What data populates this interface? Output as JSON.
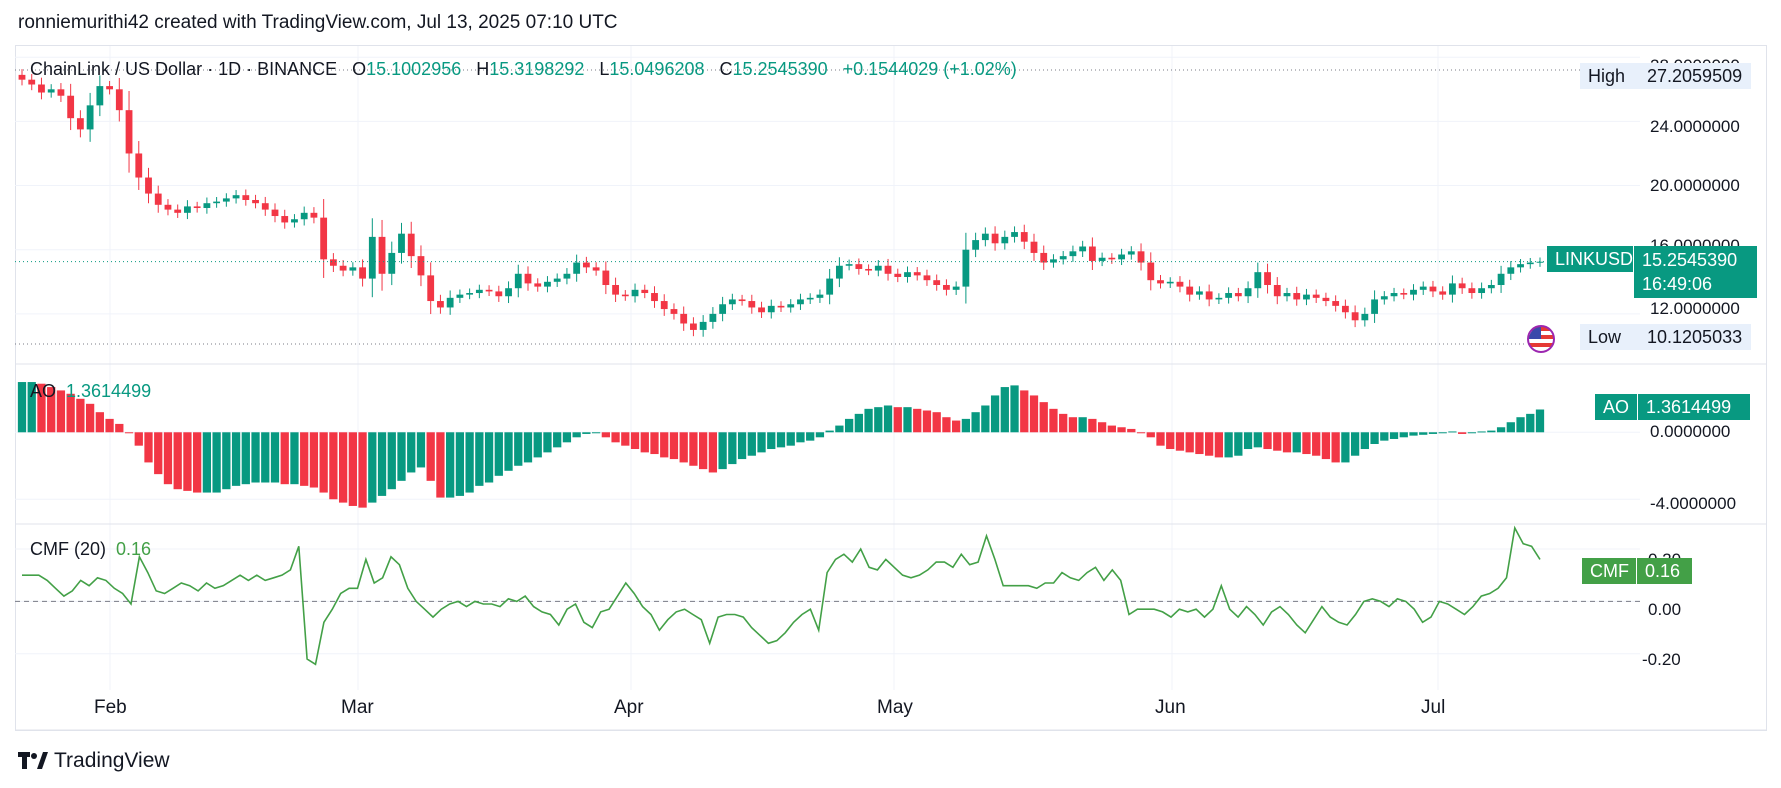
{
  "header": {
    "text": "ronniemurithi42 created with TradingView.com, Jul 13, 2025 07:10 UTC"
  },
  "footer": {
    "brand": "TradingView",
    "icon": "tradingview-logo-icon"
  },
  "legend": {
    "symbol": "ChainLink / US Dollar · 1D · BINANCE",
    "open_label": "O",
    "open": "15.1002956",
    "high_label": "H",
    "high": "15.3198292",
    "low_label": "L",
    "low": "15.0496208",
    "close_label": "C",
    "close": "15.2545390",
    "change": "+0.1544029 (+1.02%)"
  },
  "price_axis": [
    "28.0000000",
    "24.0000000",
    "20.0000000",
    "16.0000000",
    "12.0000000"
  ],
  "markers": {
    "high_label": "High",
    "high_value": "27.2059509",
    "low_label": "Low",
    "low_value": "10.1205033",
    "symbol_tag": "LINKUSD",
    "last_price": "15.2545390",
    "countdown": "16:49:06",
    "flag_icon": "us-flag-icon"
  },
  "ao": {
    "label": "AO",
    "value": "1.3614499",
    "axis": [
      "0.0000000",
      "-4.0000000"
    ]
  },
  "cmf": {
    "label": "CMF (20)",
    "tag_label": "CMF",
    "value": "0.16",
    "axis": [
      "0.20",
      "0.00",
      "-0.20"
    ]
  },
  "x_axis": [
    "Feb",
    "Mar",
    "Apr",
    "May",
    "Jun",
    "Jul"
  ],
  "colors": {
    "up": "#089981",
    "down": "#f23645",
    "cmf_line": "#43a047",
    "grid": "#f0f3fa"
  },
  "chart_data": [
    {
      "type": "candlestick",
      "title": "ChainLink / US Dollar · 1D · BINANCE",
      "x_ticks": [
        "Feb",
        "Mar",
        "Apr",
        "May",
        "Jun",
        "Jul"
      ],
      "ylim": [
        9,
        28.7
      ],
      "y_ticks": [
        12,
        16,
        20,
        24,
        28
      ],
      "high": 27.2059509,
      "low": 10.1205033,
      "last": 15.254539,
      "close": [
        26.6,
        26.3,
        25.8,
        26.0,
        25.6,
        24.2,
        23.5,
        25.0,
        26.2,
        26.0,
        24.7,
        22.0,
        20.5,
        19.5,
        18.8,
        18.5,
        18.3,
        18.7,
        18.6,
        18.9,
        19.0,
        19.2,
        19.4,
        19.1,
        18.9,
        18.5,
        18.1,
        17.7,
        17.9,
        18.3,
        18.0,
        15.4,
        15.0,
        14.7,
        14.9,
        14.2,
        16.8,
        14.5,
        15.8,
        17.0,
        15.6,
        14.4,
        12.8,
        12.4,
        13.0,
        13.2,
        13.3,
        13.5,
        13.4,
        13.1,
        13.6,
        14.5,
        13.9,
        13.7,
        14.0,
        14.2,
        14.5,
        15.2,
        14.9,
        14.7,
        13.8,
        13.2,
        13.1,
        13.5,
        13.3,
        12.8,
        12.3,
        12.0,
        11.4,
        11.0,
        11.5,
        12.0,
        12.6,
        12.9,
        12.8,
        12.4,
        12.1,
        12.5,
        12.4,
        12.6,
        12.9,
        13.0,
        13.2,
        14.2,
        15.0,
        15.1,
        14.8,
        14.7,
        15.0,
        14.5,
        14.3,
        14.6,
        14.4,
        14.1,
        13.8,
        13.5,
        13.7,
        16.0,
        16.6,
        17.0,
        16.4,
        16.8,
        17.1,
        16.5,
        15.8,
        15.2,
        15.4,
        15.6,
        15.9,
        16.2,
        15.3,
        15.5,
        15.4,
        15.7,
        15.9,
        15.2,
        14.1,
        13.9,
        14.0,
        13.7,
        13.2,
        13.4,
        12.9,
        13.0,
        13.3,
        13.1,
        13.6,
        14.6,
        13.8,
        13.1,
        13.3,
        12.9,
        13.2,
        13.0,
        12.8,
        12.5,
        12.1,
        11.6,
        12.0,
        12.9,
        13.1,
        13.3,
        13.2,
        13.5,
        13.7,
        13.4,
        13.2,
        13.9,
        13.6,
        13.3,
        13.6,
        13.8,
        14.5,
        14.9,
        15.1,
        15.2,
        15.25
      ],
      "ohlc_last": {
        "open": 15.1002956,
        "high": 15.3198292,
        "low": 15.0496208,
        "close": 15.254539
      }
    },
    {
      "type": "bar",
      "title": "AO",
      "ylim": [
        -5.0,
        3.6
      ],
      "y_ticks": [
        0,
        -4
      ],
      "last": 1.3614499,
      "values": [
        3.0,
        3.0,
        2.9,
        2.7,
        2.5,
        2.3,
        2.0,
        1.7,
        1.2,
        0.8,
        0.5,
        0.0,
        -0.8,
        -1.8,
        -2.5,
        -3.1,
        -3.4,
        -3.5,
        -3.6,
        -3.6,
        -3.6,
        -3.4,
        -3.2,
        -3.1,
        -3.0,
        -3.0,
        -3.0,
        -3.1,
        -3.1,
        -3.2,
        -3.3,
        -3.6,
        -4.0,
        -4.2,
        -4.4,
        -4.5,
        -4.2,
        -3.8,
        -3.4,
        -2.9,
        -2.4,
        -2.1,
        -2.9,
        -3.9,
        -3.9,
        -3.8,
        -3.6,
        -3.2,
        -3.0,
        -2.6,
        -2.3,
        -2.0,
        -1.8,
        -1.5,
        -1.2,
        -0.9,
        -0.6,
        -0.3,
        -0.1,
        0.0,
        -0.3,
        -0.6,
        -0.8,
        -1.0,
        -1.2,
        -1.3,
        -1.5,
        -1.6,
        -1.8,
        -2.0,
        -2.2,
        -2.4,
        -2.2,
        -1.9,
        -1.6,
        -1.4,
        -1.2,
        -1.0,
        -0.9,
        -0.8,
        -0.6,
        -0.5,
        -0.3,
        0.1,
        0.4,
        0.8,
        1.1,
        1.4,
        1.5,
        1.6,
        1.5,
        1.5,
        1.4,
        1.3,
        1.2,
        0.9,
        0.7,
        0.8,
        1.2,
        1.6,
        2.2,
        2.7,
        2.8,
        2.5,
        2.2,
        1.8,
        1.4,
        1.1,
        0.9,
        0.9,
        0.8,
        0.6,
        0.4,
        0.3,
        0.2,
        0.0,
        -0.3,
        -0.8,
        -1.0,
        -1.1,
        -1.2,
        -1.3,
        -1.4,
        -1.5,
        -1.5,
        -1.4,
        -1.0,
        -0.9,
        -1.0,
        -1.1,
        -1.2,
        -1.2,
        -1.3,
        -1.4,
        -1.6,
        -1.8,
        -1.8,
        -1.4,
        -1.0,
        -0.7,
        -0.5,
        -0.4,
        -0.3,
        -0.2,
        -0.15,
        -0.1,
        0.0,
        0.05,
        -0.1,
        0.0,
        0.05,
        0.1,
        0.3,
        0.6,
        0.9,
        1.1,
        1.36
      ]
    },
    {
      "type": "line",
      "title": "CMF (20)",
      "ylim": [
        -0.3,
        0.28
      ],
      "y_ticks": [
        0.2,
        0.0,
        -0.2
      ],
      "last": 0.16,
      "values": [
        0.1,
        0.1,
        0.1,
        0.08,
        0.05,
        0.02,
        0.04,
        0.08,
        0.06,
        0.09,
        0.08,
        0.05,
        0.03,
        -0.01,
        0.17,
        0.11,
        0.04,
        0.03,
        0.05,
        0.07,
        0.06,
        0.04,
        0.07,
        0.05,
        0.06,
        0.08,
        0.1,
        0.08,
        0.1,
        0.08,
        0.09,
        0.1,
        0.12,
        0.21,
        -0.22,
        -0.24,
        -0.08,
        -0.03,
        0.03,
        0.05,
        0.05,
        0.16,
        0.07,
        0.09,
        0.17,
        0.14,
        0.05,
        0.0,
        -0.03,
        -0.06,
        -0.03,
        -0.01,
        0.0,
        -0.02,
        0.0,
        -0.01,
        -0.01,
        -0.02,
        0.01,
        0.0,
        0.02,
        -0.02,
        -0.04,
        -0.05,
        -0.09,
        -0.03,
        -0.01,
        -0.08,
        -0.1,
        -0.04,
        -0.03,
        0.02,
        0.07,
        0.03,
        -0.02,
        -0.05,
        -0.11,
        -0.07,
        -0.04,
        -0.03,
        -0.05,
        -0.07,
        -0.16,
        -0.06,
        -0.05,
        -0.05,
        -0.06,
        -0.1,
        -0.13,
        -0.16,
        -0.15,
        -0.12,
        -0.08,
        -0.05,
        -0.03,
        -0.11,
        0.11,
        0.16,
        0.18,
        0.15,
        0.2,
        0.13,
        0.12,
        0.16,
        0.13,
        0.1,
        0.09,
        0.1,
        0.12,
        0.15,
        0.15,
        0.13,
        0.18,
        0.14,
        0.15,
        0.25,
        0.16,
        0.06,
        0.06,
        0.06,
        0.06,
        0.05,
        0.07,
        0.07,
        0.11,
        0.09,
        0.08,
        0.11,
        0.13,
        0.08,
        0.12,
        0.08,
        -0.05,
        -0.03,
        -0.03,
        -0.03,
        -0.04,
        -0.06,
        -0.03,
        -0.04,
        -0.03,
        -0.06,
        -0.03,
        0.06,
        -0.03,
        -0.06,
        -0.02,
        -0.05,
        -0.09,
        -0.04,
        -0.02,
        -0.05,
        -0.09,
        -0.12,
        -0.07,
        -0.02,
        -0.06,
        -0.08,
        -0.09,
        -0.05,
        0.0,
        0.01,
        0.0,
        -0.02,
        0.01,
        0.0,
        -0.03,
        -0.08,
        -0.06,
        0.0,
        -0.01,
        -0.03,
        -0.05,
        -0.02,
        0.02,
        0.03,
        0.05,
        0.09,
        0.28,
        0.22,
        0.21,
        0.16
      ]
    }
  ]
}
